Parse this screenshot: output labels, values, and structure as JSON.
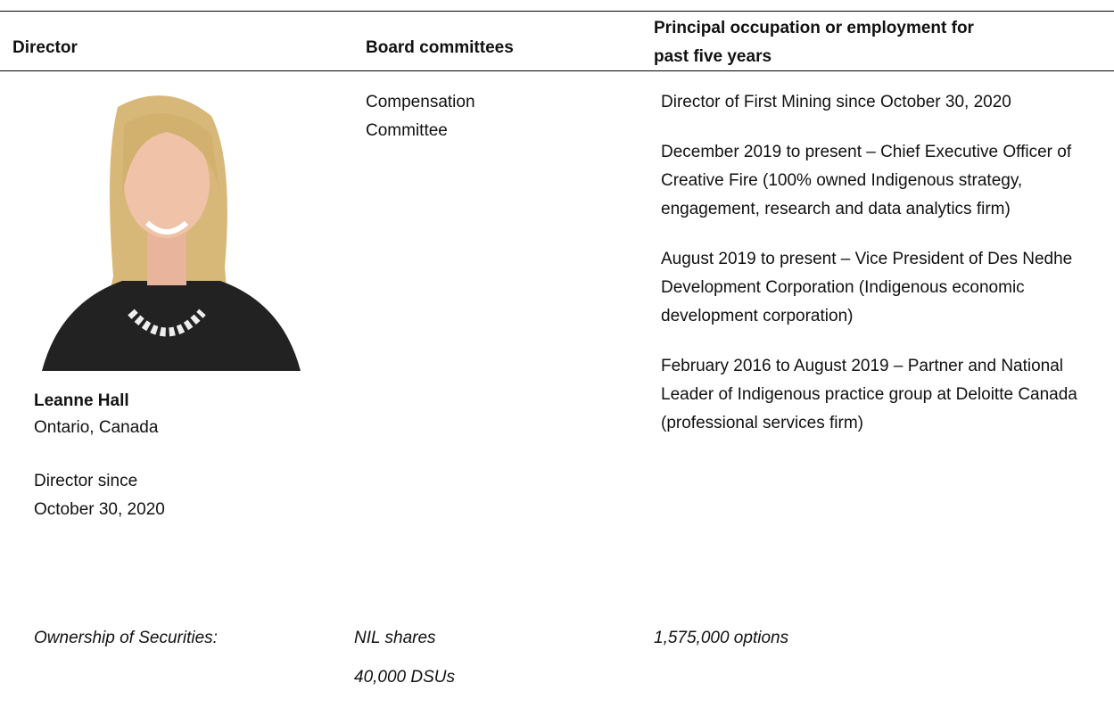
{
  "table": {
    "headers": [
      "Director",
      "Board committees",
      "Principal occupation or employment for past five years"
    ],
    "director": {
      "name": "Leanne Hall",
      "location": "Ontario, Canada",
      "since_label": "Director since",
      "since_date": "October 30, 2020"
    },
    "committees": [
      "Compensation Committee"
    ],
    "occupations": [
      "Director of First Mining since October 30, 2020",
      "December 2019 to present – Chief Executive Officer of Creative Fire (100% owned Indigenous strategy, engagement, research and data analytics firm)",
      "August 2019 to present – Vice President of Des Nedhe Development Corporation (Indigenous economic development corporation)",
      "February 2016 to August 2019 – Partner and National Leader of Indigenous practice group at Deloitte Canada (professional services firm)"
    ],
    "ownership": {
      "label": "Ownership of Securities:",
      "shares": "NIL shares",
      "dsus": "40,000 DSUs",
      "options": "1,575,000 options"
    }
  }
}
